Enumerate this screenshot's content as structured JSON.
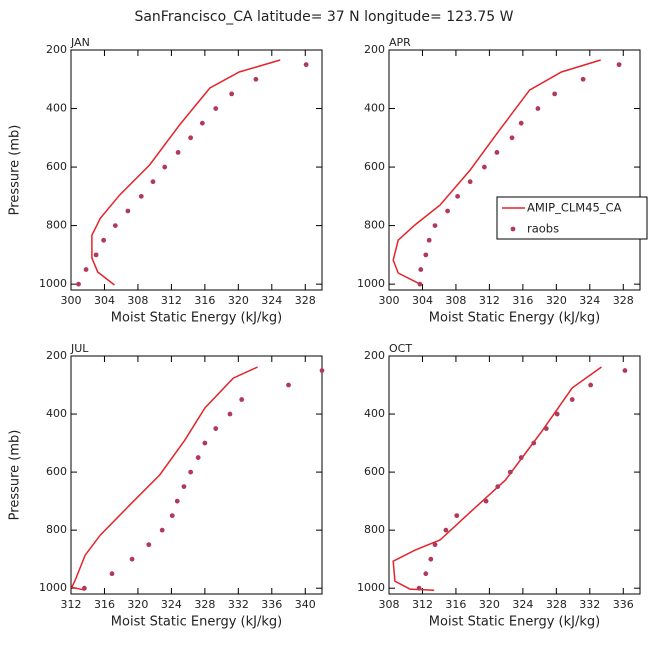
{
  "title": "SanFrancisco_CA  latitude= 37 N longitude= 123.75 W",
  "chart_data": [
    {
      "type": "line",
      "title": "JAN",
      "xlabel": "Moist Static Energy (kJ/kg)",
      "ylabel": "Pressure (mb)",
      "xlim": [
        300,
        330
      ],
      "xticks": [
        300,
        304,
        308,
        312,
        316,
        320,
        324,
        328
      ],
      "ylim": [
        1020,
        200
      ],
      "yticks": [
        200,
        400,
        600,
        800,
        1000
      ],
      "legend": false,
      "series": [
        {
          "kind": "line",
          "color": "#e3242b",
          "x": [
            325.0,
            320.1,
            316.6,
            313.0,
            309.4,
            305.8,
            303.5,
            302.5,
            302.5,
            303.2,
            305.2
          ],
          "y": [
            234,
            275,
            330,
            455,
            593,
            696,
            775,
            833,
            911,
            959,
            1003
          ]
        },
        {
          "kind": "scatter",
          "color": "#b03a5b",
          "x": [
            328.1,
            322.1,
            319.2,
            317.3,
            315.7,
            314.3,
            312.8,
            311.2,
            309.8,
            308.4,
            306.8,
            305.3,
            303.9,
            303.0,
            301.8,
            300.9
          ],
          "y": [
            250,
            300,
            350,
            400,
            450,
            500,
            550,
            600,
            650,
            700,
            750,
            800,
            850,
            900,
            950,
            1000
          ]
        }
      ]
    },
    {
      "type": "line",
      "title": "APR",
      "xlabel": "Moist Static Energy (kJ/kg)",
      "xlim": [
        300,
        330
      ],
      "xticks": [
        300,
        304,
        308,
        312,
        316,
        320,
        324,
        328
      ],
      "ylim": [
        1020,
        200
      ],
      "yticks": [
        200,
        400,
        600,
        800,
        1000
      ],
      "legend": true,
      "series": [
        {
          "name": "AMIP_CLM45_CA",
          "kind": "line",
          "color": "#e3242b",
          "x": [
            325.3,
            320.6,
            316.8,
            313.2,
            309.7,
            306.1,
            303.1,
            301.1,
            300.5,
            301.1,
            303.7
          ],
          "y": [
            234,
            275,
            337,
            474,
            610,
            730,
            798,
            850,
            918,
            962,
            1000
          ]
        },
        {
          "name": "raobs",
          "kind": "scatter",
          "color": "#b03a5b",
          "x": [
            327.5,
            323.2,
            319.8,
            317.8,
            315.8,
            314.7,
            312.9,
            311.4,
            309.7,
            308.2,
            307.0,
            305.5,
            304.8,
            304.4,
            303.8,
            303.7
          ],
          "y": [
            250,
            300,
            350,
            400,
            450,
            500,
            550,
            600,
            650,
            700,
            750,
            800,
            850,
            900,
            950,
            1000
          ]
        }
      ]
    },
    {
      "type": "line",
      "title": "JUL",
      "xlabel": "Moist Static Energy (kJ/kg)",
      "ylabel": "Pressure (mb)",
      "xlim": [
        312,
        342
      ],
      "xticks": [
        312,
        316,
        320,
        324,
        328,
        332,
        336,
        340
      ],
      "ylim": [
        1020,
        200
      ],
      "yticks": [
        200,
        400,
        600,
        800,
        1000
      ],
      "legend": false,
      "series": [
        {
          "kind": "line",
          "color": "#e3242b",
          "x": [
            334.3,
            331.4,
            328.0,
            325.6,
            322.6,
            319.0,
            315.5,
            313.7,
            312.5,
            312.1,
            313.7
          ],
          "y": [
            238,
            276,
            379,
            490,
            610,
            714,
            817,
            886,
            972,
            997,
            1007
          ]
        },
        {
          "kind": "scatter",
          "color": "#b03a5b",
          "x": [
            342.0,
            338.0,
            332.4,
            331.0,
            329.3,
            328.0,
            327.2,
            326.3,
            325.5,
            324.7,
            324.1,
            322.9,
            321.3,
            319.3,
            316.9,
            313.6
          ],
          "y": [
            250,
            300,
            350,
            400,
            450,
            500,
            550,
            600,
            650,
            700,
            750,
            800,
            850,
            900,
            950,
            1000
          ]
        }
      ]
    },
    {
      "type": "line",
      "title": "OCT",
      "xlabel": "Moist Static Energy (kJ/kg)",
      "xlim": [
        308,
        338
      ],
      "xticks": [
        308,
        312,
        316,
        320,
        324,
        328,
        332,
        336
      ],
      "ylim": [
        1020,
        200
      ],
      "yticks": [
        200,
        400,
        600,
        800,
        1000
      ],
      "legend": false,
      "series": [
        {
          "kind": "line",
          "color": "#e3242b",
          "x": [
            333.4,
            329.9,
            326.2,
            321.9,
            317.7,
            314.1,
            311.1,
            308.5,
            308.7,
            310.5,
            313.4
          ],
          "y": [
            238,
            310,
            462,
            628,
            738,
            834,
            869,
            907,
            976,
            1003,
            1007
          ]
        },
        {
          "kind": "scatter",
          "color": "#b03a5b",
          "x": [
            336.2,
            332.1,
            329.9,
            328.1,
            326.8,
            325.3,
            323.8,
            322.5,
            321.0,
            319.6,
            316.1,
            314.8,
            313.5,
            313.0,
            312.4,
            311.6
          ],
          "y": [
            250,
            300,
            350,
            400,
            450,
            500,
            550,
            600,
            650,
            700,
            750,
            800,
            850,
            900,
            950,
            1000
          ]
        }
      ]
    }
  ]
}
